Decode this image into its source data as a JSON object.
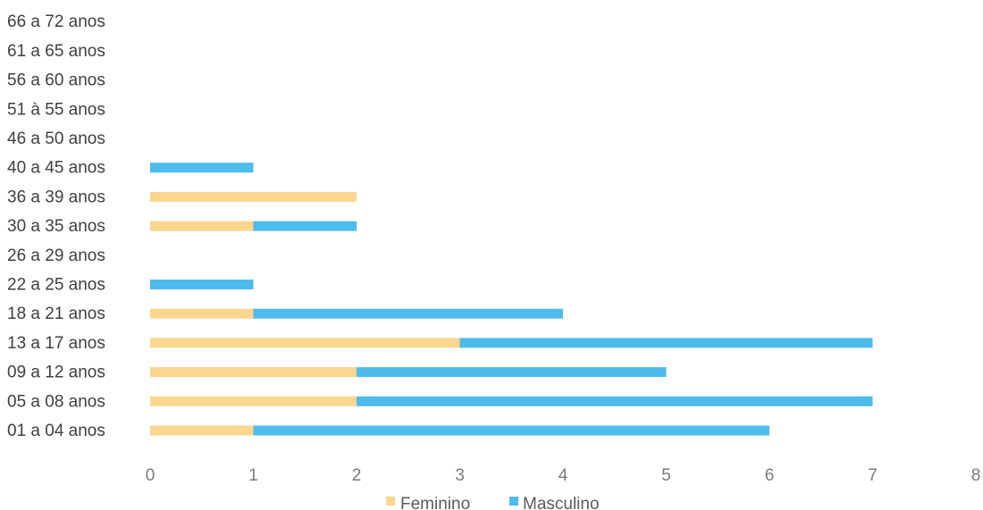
{
  "chart_data": {
    "type": "bar",
    "orientation": "horizontal",
    "stacked": true,
    "categories": [
      "01 a 04 anos",
      "05 a 08 anos",
      "09 a 12 anos",
      "13 a 17 anos",
      "18 a 21 anos",
      "22 a 25 anos",
      "26 a 29 anos",
      "30 a 35 anos",
      "36 a 39 anos",
      "40 a 45 anos",
      "46 a 50 anos",
      "51 à 55 anos",
      "56 a 60 anos",
      "61 a 65 anos",
      "66 a 72 anos"
    ],
    "series": [
      {
        "name": "Feminino",
        "color": "#fad68f",
        "values": [
          1,
          2,
          2,
          3,
          1,
          0,
          0,
          1,
          2,
          0,
          0,
          0,
          0,
          0,
          0
        ]
      },
      {
        "name": "Masculino",
        "color": "#4dbbeb",
        "values": [
          5,
          5,
          3,
          4,
          3,
          1,
          0,
          1,
          0,
          1,
          0,
          0,
          0,
          0,
          0
        ]
      }
    ],
    "xlim": [
      0,
      8
    ],
    "xticks": [
      "0",
      "1",
      "2",
      "3",
      "4",
      "5",
      "6",
      "7",
      "8"
    ],
    "grid": false,
    "legend_position": "bottom"
  }
}
